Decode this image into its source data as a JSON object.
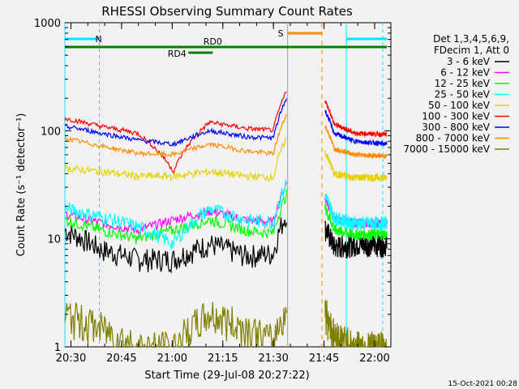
{
  "chart_data": {
    "type": "line",
    "title": "RHESSI Observing Summary Count Rates",
    "xlabel": "Start Time (29-Jul-08 20:27:22)",
    "ylabel": "Count Rate (s⁻¹ detector⁻¹)",
    "yscale": "log",
    "xlim": [
      20.47,
      22.08
    ],
    "ylim": [
      1,
      1000
    ],
    "x_tick_labels": [
      "20:30",
      "20:45",
      "21:00",
      "21:15",
      "21:30",
      "21:45",
      "22:00"
    ],
    "x_tick_values": [
      20.5,
      20.75,
      21.0,
      21.25,
      21.5,
      21.75,
      22.0
    ],
    "y_tick_labels": [
      "1",
      "10",
      "100",
      "1000"
    ],
    "y_tick_values": [
      1,
      10,
      100,
      1000
    ],
    "legend_header": [
      "Det 1,3,4,5,6,9,",
      "FDecim 1, Att 0"
    ],
    "series": [
      {
        "name": "3 - 6 keV",
        "color": "#000000",
        "level": [
          12,
          8,
          6.5,
          6.5,
          9,
          7,
          7.5,
          8,
          9,
          9
        ],
        "noise": 0.25
      },
      {
        "name": "6 - 12 keV",
        "color": "#ff00ff",
        "level": [
          17,
          14,
          12,
          15,
          18,
          15,
          14,
          16,
          14,
          14
        ],
        "noise": 0.1
      },
      {
        "name": "12 - 25 keV",
        "color": "#00ff00",
        "level": [
          15,
          12,
          10,
          12,
          15,
          12,
          11,
          13,
          11,
          11
        ],
        "noise": 0.12
      },
      {
        "name": "25 - 50 keV",
        "color": "#00ffff",
        "level": [
          19,
          16,
          13,
          9,
          19,
          15,
          14,
          17,
          14,
          14
        ],
        "noise": 0.15
      },
      {
        "name": "50 - 100 keV",
        "color": "#e6d200",
        "level": [
          45,
          42,
          38,
          38,
          42,
          38,
          37,
          42,
          37,
          37
        ],
        "noise": 0.08
      },
      {
        "name": "100 - 300 keV",
        "color": "#ff0000",
        "level": [
          130,
          110,
          95,
          42,
          120,
          105,
          100,
          130,
          95,
          92
        ],
        "noise": 0.05
      },
      {
        "name": "300 - 800 keV",
        "color": "#0000ff",
        "level": [
          110,
          95,
          82,
          75,
          100,
          88,
          85,
          105,
          80,
          75
        ],
        "noise": 0.05
      },
      {
        "name": "800 - 7000 keV",
        "color": "#ff8c00",
        "level": [
          85,
          72,
          62,
          60,
          75,
          65,
          60,
          75,
          60,
          58
        ],
        "noise": 0.05
      },
      {
        "name": "7000 - 15000 keV",
        "color": "#808000",
        "level": [
          2,
          1.5,
          1,
          1,
          2,
          1.5,
          1,
          1.5,
          1,
          1
        ],
        "noise": 0.4
      }
    ],
    "annotations": [
      {
        "text": "N",
        "color": "#00e5ff",
        "x": 20.6
      },
      {
        "text": "S",
        "color": "#ff8c00",
        "x": 21.6
      },
      {
        "text": "RD0",
        "color": "#008000",
        "x": 21.2
      },
      {
        "text": "RD4",
        "color": "#008000",
        "x": 21.1
      }
    ],
    "timestamp": "15-Oct-2021 00:28"
  }
}
